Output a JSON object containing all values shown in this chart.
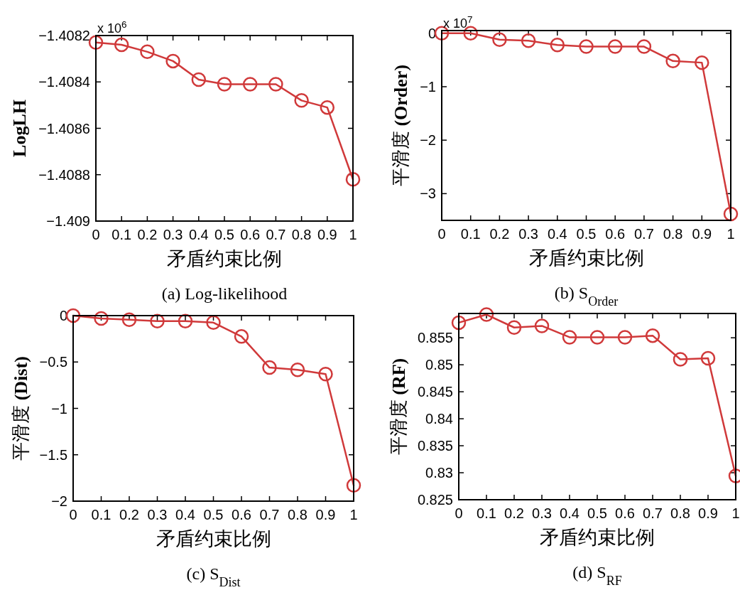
{
  "chart_data": [
    {
      "type": "line",
      "title": "(a) Log-likelihood",
      "xlabel": "矛盾约束比例",
      "ylabel": "LogLH",
      "annotations": [
        "x 10$^{6}$"
      ],
      "x": [
        0,
        0.1,
        0.2,
        0.3,
        0.4,
        0.5,
        0.6,
        0.7,
        0.8,
        0.9,
        1
      ],
      "color": "#d0393a",
      "marker": "circle",
      "values": [
        -1.40823,
        -1.40824,
        -1.40827,
        -1.40831,
        -1.40839,
        -1.40841,
        -1.40841,
        -1.40841,
        -1.40848,
        -1.40851,
        -1.40882
      ],
      "xlim": [
        0,
        1
      ],
      "xticks": [
        0,
        0.1,
        0.2,
        0.3,
        0.4,
        0.5,
        0.6,
        0.7,
        0.8,
        0.9,
        1
      ],
      "ylim": [
        -1.409,
        -1.4082
      ],
      "yticks": [
        -1.409,
        -1.4088,
        -1.4086,
        -1.4084,
        -1.4082
      ]
    },
    {
      "type": "line",
      "title": "(b) S$_{Order}$",
      "xlabel": "矛盾约束比例",
      "ylabel": "平滑度 (Order)",
      "annotations": [
        "x 10$^{7}$"
      ],
      "x": [
        0,
        0.1,
        0.2,
        0.3,
        0.4,
        0.5,
        0.6,
        0.7,
        0.8,
        0.9,
        1
      ],
      "color": "#d0393a",
      "marker": "circle",
      "values": [
        0,
        0,
        -0.12,
        -0.14,
        -0.22,
        -0.25,
        -0.25,
        -0.25,
        -0.52,
        -0.55,
        -3.38
      ],
      "xlim": [
        0,
        1
      ],
      "xticks": [
        0,
        0.1,
        0.2,
        0.3,
        0.4,
        0.5,
        0.6,
        0.7,
        0.8,
        0.9,
        1
      ],
      "ylim": [
        -3.5,
        0.05
      ],
      "yticks": [
        -3,
        -2,
        -1,
        0
      ]
    },
    {
      "type": "line",
      "title": "(c) S$_{Dist}$",
      "xlabel": "矛盾约束比例",
      "ylabel": "平滑度 (Dist)",
      "x": [
        0,
        0.1,
        0.2,
        0.3,
        0.4,
        0.5,
        0.6,
        0.7,
        0.8,
        0.9,
        1
      ],
      "color": "#d0393a",
      "marker": "circle",
      "values": [
        0,
        -0.03,
        -0.045,
        -0.06,
        -0.06,
        -0.075,
        -0.225,
        -0.56,
        -0.585,
        -0.63,
        -1.83
      ],
      "xlim": [
        0,
        1
      ],
      "xticks": [
        0,
        0.1,
        0.2,
        0.3,
        0.4,
        0.5,
        0.6,
        0.7,
        0.8,
        0.9,
        1
      ],
      "ylim": [
        -2,
        0
      ],
      "yticks": [
        -2,
        -1.5,
        -1,
        -0.5,
        0
      ]
    },
    {
      "type": "line",
      "title": "(d) S$_{RF}$",
      "xlabel": "矛盾约束比例",
      "ylabel": "平滑度 (RF)",
      "x": [
        0,
        0.1,
        0.2,
        0.3,
        0.4,
        0.5,
        0.6,
        0.7,
        0.8,
        0.9,
        1
      ],
      "color": "#d0393a",
      "marker": "circle",
      "values": [
        0.8578,
        0.8593,
        0.8569,
        0.8572,
        0.8551,
        0.8551,
        0.8551,
        0.8554,
        0.851,
        0.8512,
        0.8294
      ],
      "xlim": [
        0,
        1
      ],
      "xticks": [
        0,
        0.1,
        0.2,
        0.3,
        0.4,
        0.5,
        0.6,
        0.7,
        0.8,
        0.9,
        1
      ],
      "ylim": [
        0.825,
        0.8595
      ],
      "yticks": [
        0.825,
        0.83,
        0.835,
        0.84,
        0.845,
        0.85,
        0.855
      ]
    }
  ]
}
